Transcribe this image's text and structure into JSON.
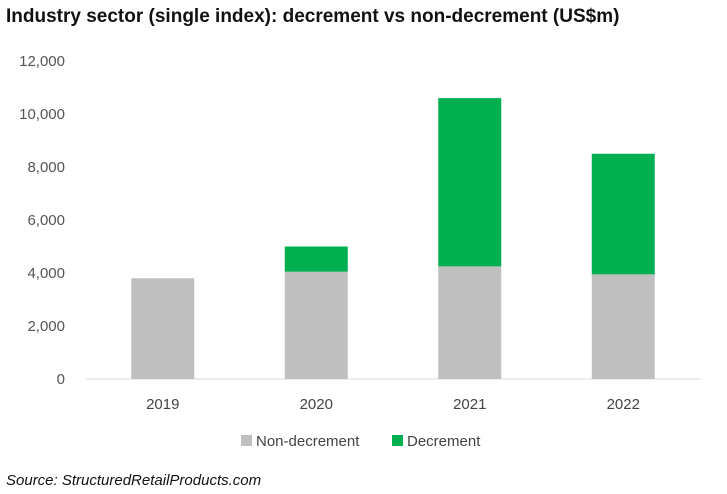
{
  "chart_data": {
    "type": "bar",
    "stacked": true,
    "title": "Industry sector (single index): decrement vs non-decrement (US$m)",
    "categories": [
      "2019",
      "2020",
      "2021",
      "2022"
    ],
    "series": [
      {
        "name": "Non-decrement",
        "color": "#bfbfbf",
        "values": [
          3800,
          4050,
          4250,
          3950
        ]
      },
      {
        "name": "Decrement",
        "color": "#00b050",
        "values": [
          0,
          950,
          6350,
          4550
        ]
      }
    ],
    "yticks": [
      "0",
      "2,000",
      "4,000",
      "6,000",
      "8,000",
      "10,000",
      "12,000"
    ],
    "ylim": [
      0,
      12000
    ],
    "grid": false,
    "legend": "bottom-center"
  },
  "source": "Source: StructuredRetailProducts.com"
}
